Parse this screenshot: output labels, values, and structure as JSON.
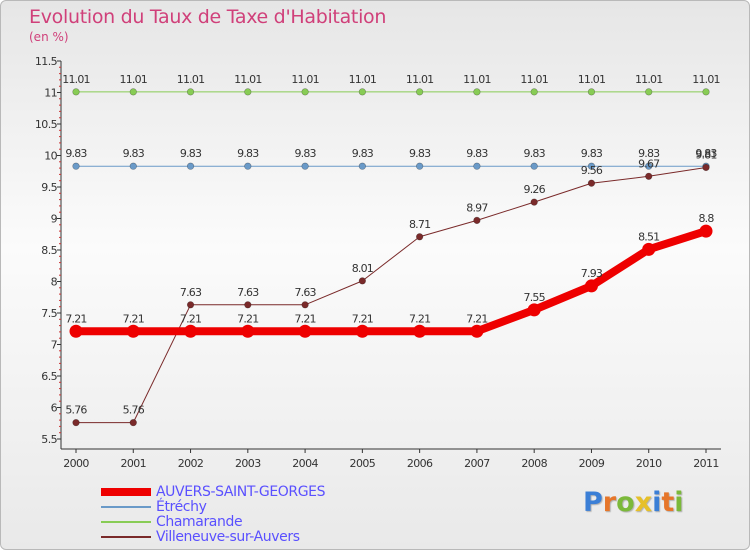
{
  "title": "Evolution du Taux de Taxe d'Habitation",
  "subtitle": "(en %)",
  "logo_text": "Proxiti",
  "chart_data": {
    "type": "line",
    "title": "Evolution du Taux de Taxe d'Habitation",
    "ylabel": "(en %)",
    "xlabel": "",
    "x": [
      "2000",
      "2001",
      "2002",
      "2003",
      "2004",
      "2005",
      "2006",
      "2007",
      "2008",
      "2009",
      "2010",
      "2011"
    ],
    "ylim": [
      5.5,
      11.5
    ],
    "yticks": [
      "5.5",
      "6",
      "6.5",
      "7",
      "7.5",
      "8",
      "8.5",
      "9",
      "9.5",
      "10",
      "10.5",
      "11",
      "11.5"
    ],
    "series": [
      {
        "name": "AUVERS-SAINT-GEORGES",
        "color": "#ee0000",
        "values": [
          7.21,
          7.21,
          7.21,
          7.21,
          7.21,
          7.21,
          7.21,
          7.21,
          7.55,
          7.93,
          8.51,
          8.8
        ],
        "labels": [
          "7.21",
          "7.21",
          "7.21",
          "7.21",
          "7.21",
          "7.21",
          "7.21",
          "7.21",
          "7.55",
          "7.93",
          "8.51",
          "8.8"
        ]
      },
      {
        "name": "Étréchy",
        "color": "#6a9ac8",
        "values": [
          9.83,
          9.83,
          9.83,
          9.83,
          9.83,
          9.83,
          9.83,
          9.83,
          9.83,
          9.83,
          9.83,
          9.83
        ],
        "labels": [
          "9.83",
          "9.83",
          "9.83",
          "9.83",
          "9.83",
          "9.83",
          "9.83",
          "9.83",
          "9.83",
          "9.83",
          "9.83",
          "9.83"
        ]
      },
      {
        "name": "Chamarande",
        "color": "#88cc55",
        "values": [
          11.01,
          11.01,
          11.01,
          11.01,
          11.01,
          11.01,
          11.01,
          11.01,
          11.01,
          11.01,
          11.01,
          11.01
        ],
        "labels": [
          "11.01",
          "11.01",
          "11.01",
          "11.01",
          "11.01",
          "11.01",
          "11.01",
          "11.01",
          "11.01",
          "11.01",
          "11.01",
          "11.01"
        ]
      },
      {
        "name": "Villeneuve-sur-Auvers",
        "color": "#7a2a2a",
        "values": [
          5.76,
          5.76,
          7.63,
          7.63,
          7.63,
          8.01,
          8.71,
          8.97,
          9.26,
          9.56,
          9.67,
          9.81
        ],
        "labels": [
          "5.76",
          "5.76",
          "7.63",
          "7.63",
          "7.63",
          "8.01",
          "8.71",
          "8.97",
          "9.26",
          "9.56",
          "9.67",
          "9.81"
        ]
      }
    ],
    "legend_position": "bottom-left"
  }
}
